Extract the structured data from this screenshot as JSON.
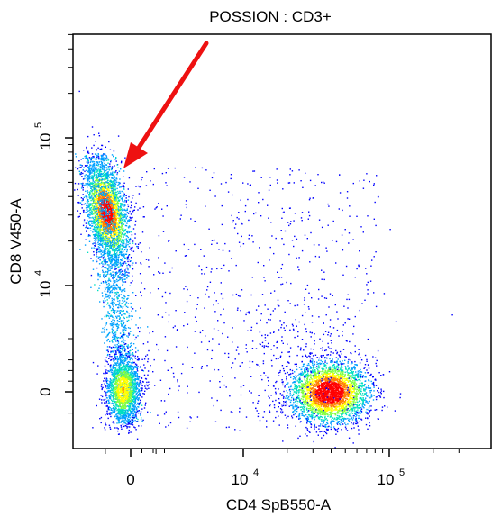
{
  "chart_data": {
    "type": "scatter",
    "title": "POSSION : CD3+",
    "xlabel": "CD4 SpB550-A",
    "ylabel": "CD8 V450-A",
    "x_scale": "biexponential",
    "y_scale": "biexponential",
    "x_ticks": [
      {
        "value": 0,
        "label": "0"
      },
      {
        "value": 10000,
        "label": "10",
        "exponent": "4"
      },
      {
        "value": 100000,
        "label": "10",
        "exponent": "5"
      }
    ],
    "y_ticks": [
      {
        "value": 0,
        "label": "0"
      },
      {
        "value": 10000,
        "label": "10",
        "exponent": "4"
      },
      {
        "value": 100000,
        "label": "10",
        "exponent": "5"
      }
    ],
    "plot_style": "pseudocolor density dot plot",
    "populations": [
      {
        "center_x": -300,
        "center_y": 45000,
        "relative_density": "high"
      },
      {
        "center_x": -200,
        "center_y": 2000,
        "relative_density": "medium"
      },
      {
        "center_x": 0,
        "center_y": 10000,
        "relative_density": "low"
      },
      {
        "center_x": 40000,
        "center_y": 0,
        "relative_density": "high"
      },
      {
        "center_x": 15000,
        "center_y": 20000,
        "relative_density": "sparse"
      }
    ],
    "density_colors": [
      "#0000ff",
      "#00a0ff",
      "#00e0c0",
      "#80ff40",
      "#ffff00",
      "#ff8000",
      "#ff0000"
    ],
    "annotation": {
      "type": "arrow",
      "color": "#ee1111",
      "points_to_x": -200,
      "points_to_y": 90000
    },
    "grid": false
  }
}
